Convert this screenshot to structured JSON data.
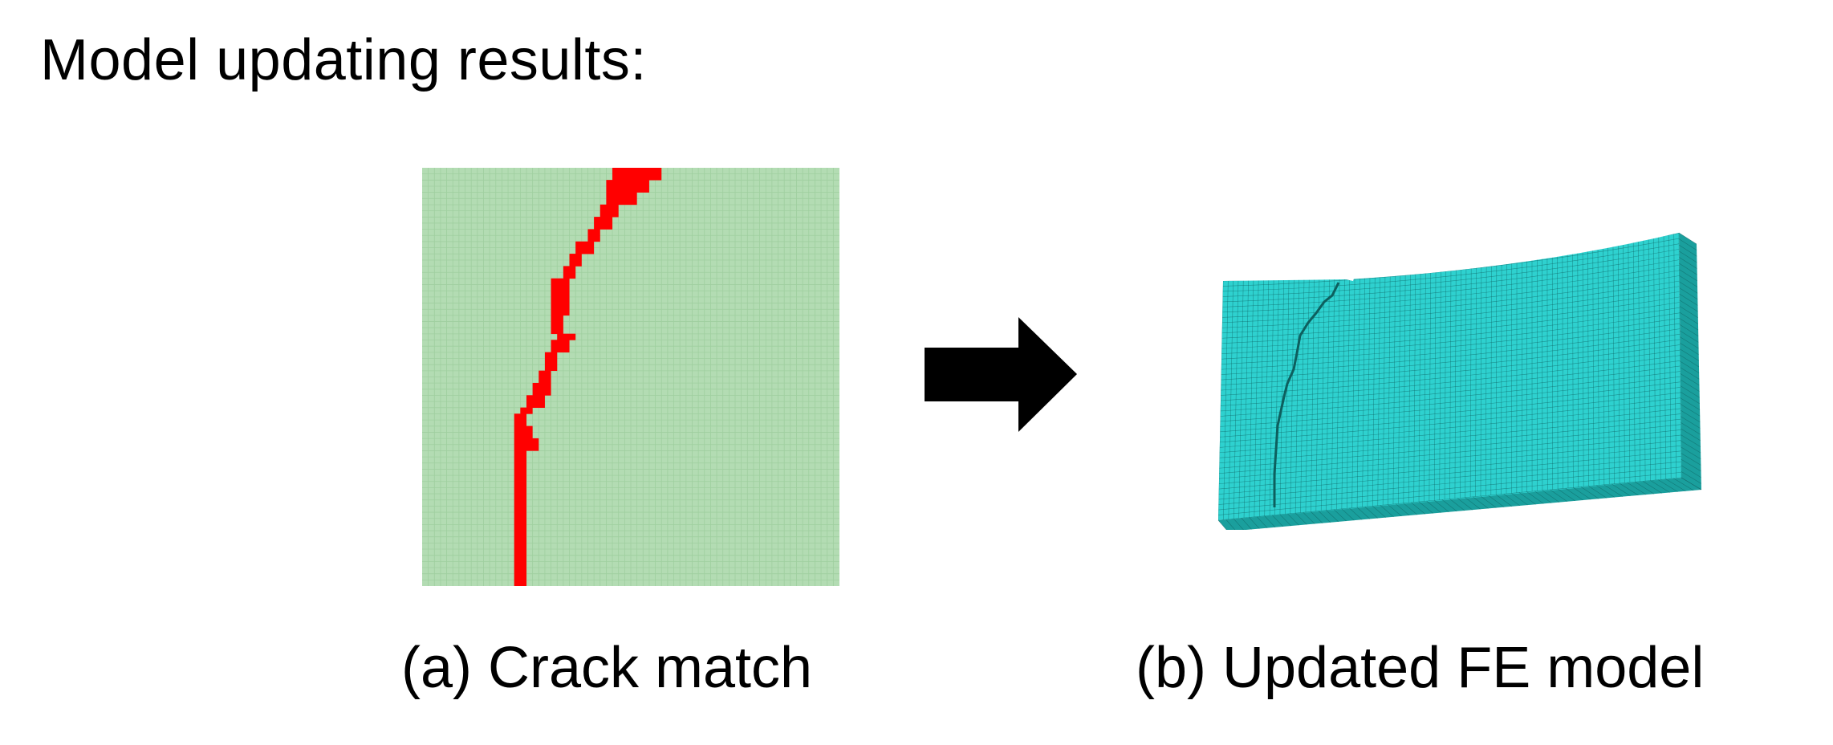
{
  "slide": {
    "title": "Model updating results:"
  },
  "panel_a": {
    "caption": "(a) Crack match",
    "grid_cols": 68,
    "grid_rows": 68,
    "colors": {
      "background": "#b3dcb3",
      "grid_line": "#9fcf9f",
      "crack": "#ff0000"
    }
  },
  "panel_b": {
    "caption": "(b) Updated FE model",
    "colors": {
      "face": "#2ed1cf",
      "face_dark": "#1a9f9d",
      "mesh_line": "#0d5f5e"
    }
  },
  "arrow": {
    "icon": "right-arrow-icon",
    "color": "#000000"
  }
}
